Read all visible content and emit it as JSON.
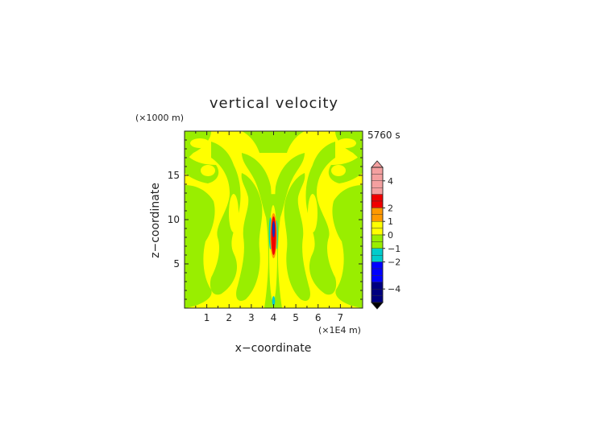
{
  "chart_data": {
    "type": "heatmap",
    "title": "vertical velocity",
    "time_label": "5760 s",
    "xlabel": "x−coordinate",
    "ylabel": "z−coordinate",
    "x_unit": "(×1E4 m)",
    "y_unit": "(×1000 m)",
    "xlim": [
      0,
      8
    ],
    "ylim": [
      0,
      20
    ],
    "x_ticks": [
      1,
      2,
      3,
      4,
      5,
      6,
      7
    ],
    "y_ticks": [
      5,
      10,
      15
    ],
    "x_tick_labels": [
      "1",
      "2",
      "3",
      "4",
      "5",
      "6",
      "7"
    ],
    "y_tick_labels": [
      "5",
      "10",
      "15"
    ],
    "colorbar": {
      "tick_values": [
        4,
        2,
        1,
        0,
        -1,
        -2,
        -4
      ],
      "tick_labels": [
        "4",
        "2",
        "1",
        "0",
        "−1",
        "−2",
        "−4"
      ],
      "colors": {
        "pink": "#f4a0a0",
        "red": "#f00000",
        "orange": "#ff9900",
        "yellow": "#ffff00",
        "green": "#99ee00",
        "cyan": "#00cccc",
        "blue": "#0000ff",
        "navy": "#00007f"
      }
    },
    "field": {
      "background": "yellow",
      "dominant_colors": [
        "yellow",
        "green"
      ],
      "updraft_core": {
        "x": 4.0,
        "z_range": [
          5.5,
          10.5
        ],
        "color": "red"
      },
      "downdraft_flanks": {
        "x": [
          3.9,
          4.1
        ],
        "color": "cyan"
      }
    }
  }
}
